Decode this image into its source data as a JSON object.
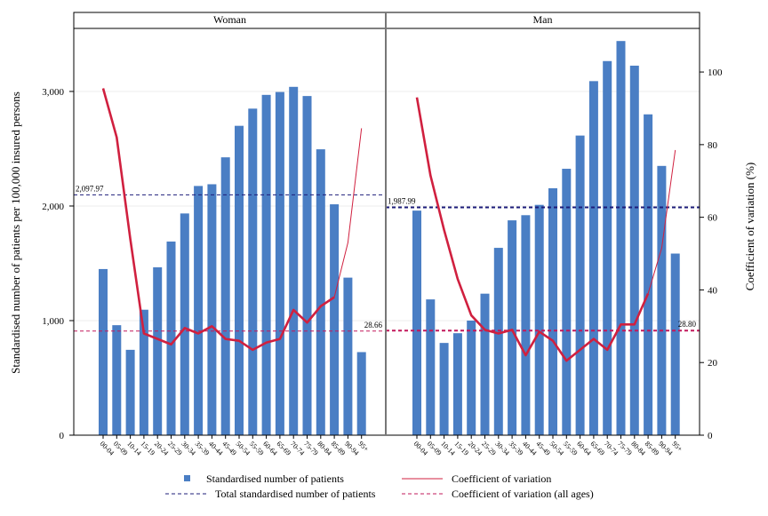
{
  "chart_data": {
    "type": "bar",
    "ylabel": "Standardised number of patients per 100,000 insured persons",
    "y2label": "Coefficient of variation (%)",
    "ylim": [
      0,
      3550
    ],
    "y2lim": [
      0,
      112
    ],
    "yticks": [
      "0",
      "1,000",
      "2,000",
      "3,000"
    ],
    "y2ticks": [
      "0",
      "20",
      "40",
      "60",
      "80",
      "100"
    ],
    "categories": [
      "00-04",
      "05-09",
      "10-14",
      "15-19",
      "20-24",
      "25-29",
      "30-34",
      "35-39",
      "40-44",
      "45-49",
      "50-54",
      "55-59",
      "60-64",
      "65-69",
      "70-74",
      "75-79",
      "80-84",
      "85-89",
      "90-94",
      "95+"
    ],
    "panels": [
      {
        "title": "Woman",
        "patients": [
          1450,
          960,
          745,
          1095,
          1465,
          1690,
          1935,
          2175,
          2190,
          2425,
          2700,
          2850,
          2970,
          2995,
          3040,
          2960,
          2495,
          2015,
          1375,
          725
        ],
        "cv": [
          95.5,
          82,
          54,
          28,
          26.5,
          25,
          29.5,
          28,
          30,
          26.5,
          26,
          23.5,
          25.5,
          26.5,
          34.5,
          31,
          35.5,
          38,
          53,
          84.5
        ],
        "total_patients": 2097.97,
        "total_patients_label": "2,097.97",
        "cv_all": 28.66,
        "cv_all_label": "28.66"
      },
      {
        "title": "Man",
        "patients": [
          1960,
          1185,
          805,
          890,
          1000,
          1235,
          1635,
          1875,
          1920,
          2010,
          2155,
          2325,
          2615,
          3090,
          3265,
          3440,
          3225,
          2800,
          2350,
          1585
        ],
        "cv": [
          93,
          71.5,
          56.5,
          43,
          33,
          29,
          28,
          29,
          22,
          28.5,
          26,
          20.5,
          23.5,
          26.5,
          23.5,
          30.5,
          30.5,
          39,
          51.5,
          78.5
        ],
        "total_patients": 1987.99,
        "total_patients_label": "1,987.99",
        "cv_all": 28.8,
        "cv_all_label": "28.80"
      }
    ],
    "legend": [
      {
        "label": "Standardised number of patients",
        "style": "square"
      },
      {
        "label": "Coefficient of variation",
        "style": "line"
      },
      {
        "label": "Total standardised number of patients",
        "style": "dashed-navy"
      },
      {
        "label": "Coefficient of variation (all ages)",
        "style": "dashed-red"
      }
    ],
    "colors": {
      "bar": "#4a7ec4",
      "cv": "#d0203f",
      "total": "#1c1c7a",
      "cv_all": "#c2185b"
    }
  }
}
